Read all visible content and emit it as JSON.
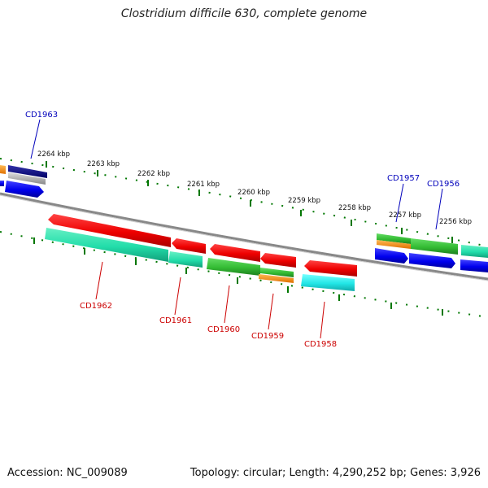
{
  "title": "Clostridium difficile 630, complete genome",
  "footer": {
    "accession": "Accession: NC_009089",
    "summary": "Topology: circular; Length: 4,290,252 bp; Genes: 3,926"
  },
  "scale_labels": [
    "2264 kbp",
    "2263 kbp",
    "2262 kbp",
    "2261 kbp",
    "2260 kbp",
    "2259 kbp",
    "2258 kbp",
    "2257 kbp",
    "2256 kbp"
  ],
  "genes_top": [
    "CD1963",
    "CD1957",
    "CD1956"
  ],
  "genes_bottom": [
    "CD1962",
    "CD1961",
    "CD1960",
    "CD1959",
    "CD1958"
  ],
  "colors": {
    "forward_red": "#ee0000",
    "reverse_blue": "#0000ee",
    "green": "#33bb33",
    "teal": "#22ddaa",
    "cyan": "#22e6e6",
    "orange": "#ff8800",
    "navy": "#000080",
    "backbone": "#888888",
    "tick": "#007700",
    "label_red": "#cc0000",
    "label_blue": "#0000bb"
  }
}
